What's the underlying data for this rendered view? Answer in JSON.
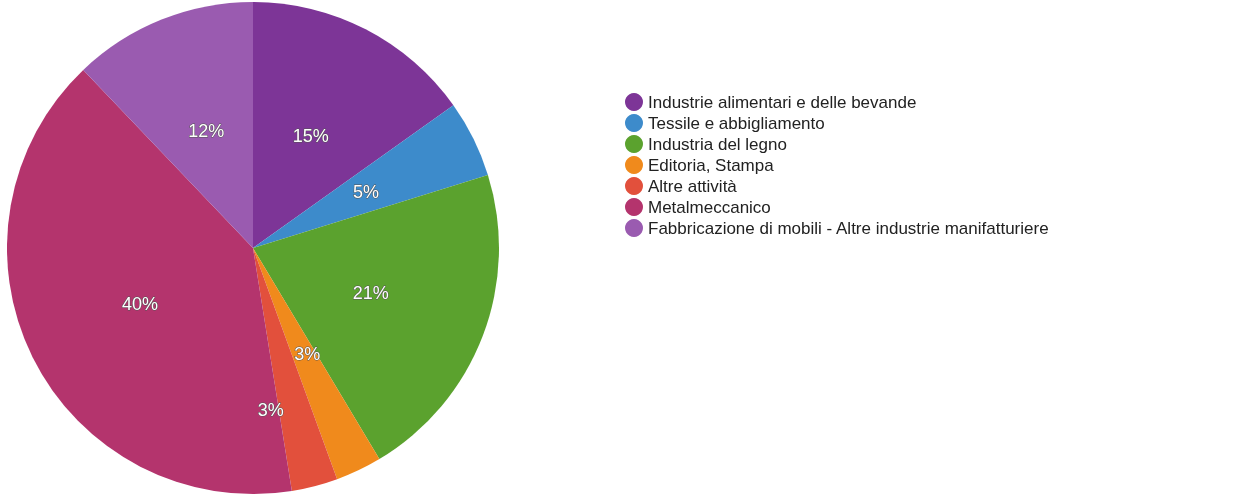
{
  "chart_data": {
    "type": "pie",
    "categories": [
      "Industrie alimentari e delle bevande",
      "Tessile e abbigliamento",
      "Industria del legno",
      "Editoria, Stampa",
      "Altre attività",
      "Metalmeccanico",
      "Fabbricazione di mobili - Altre industrie manifatturiere"
    ],
    "values": [
      15,
      5,
      21,
      3,
      3,
      40,
      12
    ],
    "value_labels": [
      "15%",
      "5%",
      "21%",
      "3%",
      "3%",
      "40%",
      "12%"
    ],
    "colors": [
      "#7d3597",
      "#3d8bcb",
      "#5ba22e",
      "#f08a1c",
      "#e2503c",
      "#b4346d",
      "#9a5bb0"
    ],
    "legend": "right"
  }
}
